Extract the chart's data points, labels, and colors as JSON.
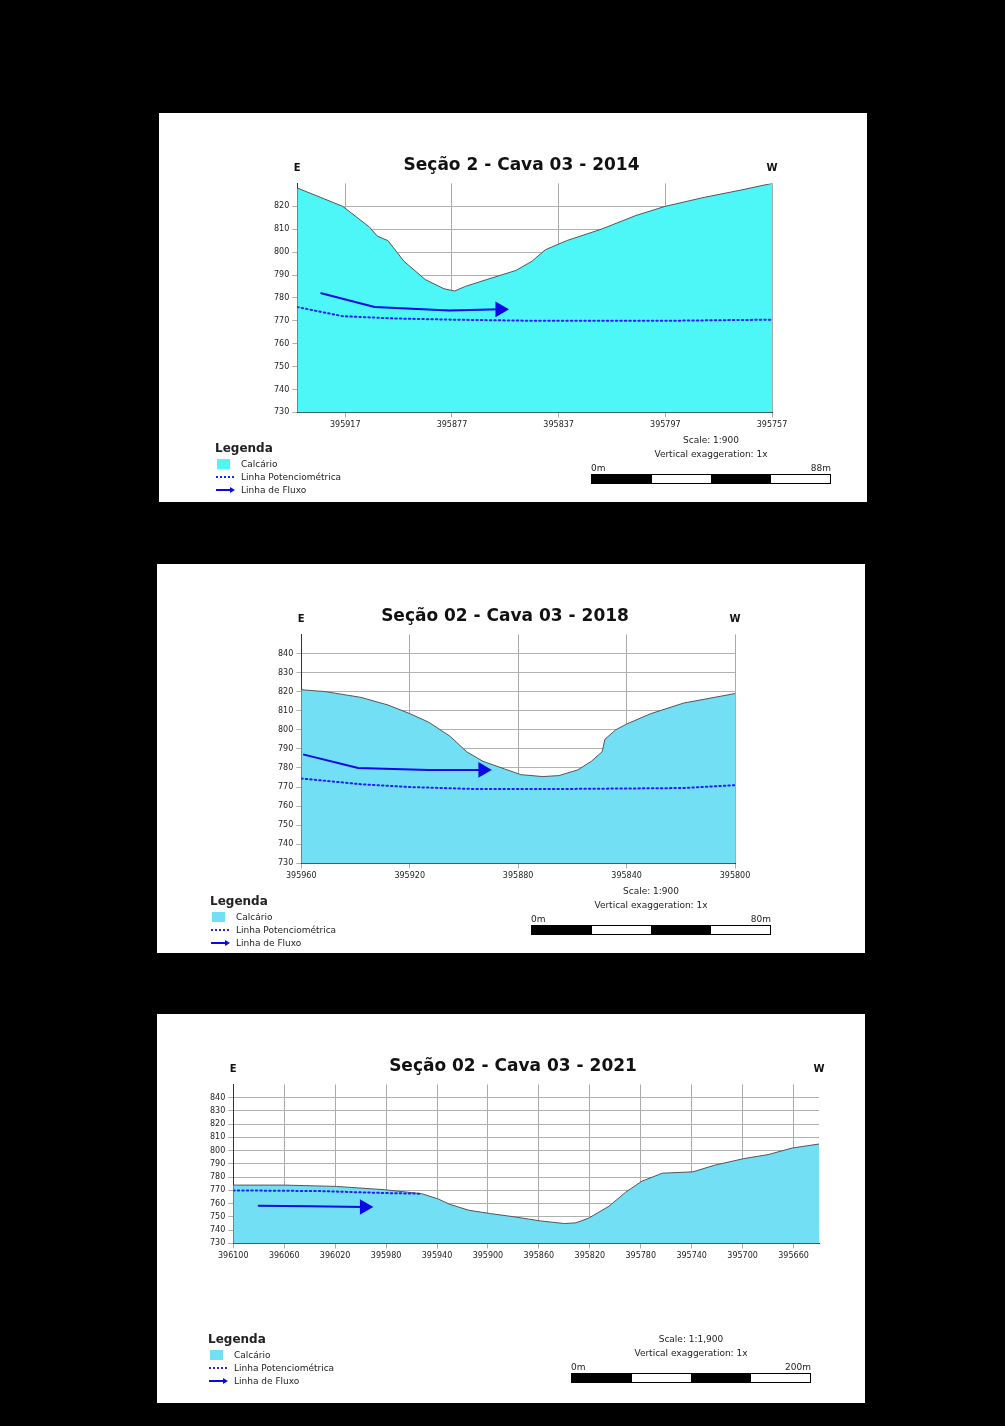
{
  "chart_data": [
    {
      "type": "area",
      "title": "Seção 2 - Cava 03 - 2014",
      "legend_title": "Legenda",
      "legend": "bottom left",
      "grid": true,
      "marker": "none",
      "xlim": [
        395935,
        395757
      ],
      "xticks": [
        395917,
        395877,
        395837,
        395797,
        395757
      ],
      "ylim": [
        730,
        830
      ],
      "yticks": [
        730,
        740,
        750,
        760,
        770,
        780,
        790,
        800,
        810,
        820
      ],
      "series": [
        {
          "name": "Calcário",
          "color": "#4df7f7",
          "x": [
            395935,
            395918,
            395908,
            395905,
            395901,
            395895,
            395887,
            395880,
            395876,
            395872,
            395864,
            395853,
            395847,
            395842,
            395834,
            395821,
            395808,
            395797,
            395782,
            395769,
            395757
          ],
          "values": [
            828,
            820,
            811,
            807,
            805,
            796,
            788,
            784,
            783,
            785,
            788,
            792,
            796,
            801,
            805,
            810,
            816,
            820,
            824,
            827,
            830
          ]
        },
        {
          "name": "Linha Potenciométrica",
          "type": "line",
          "line_style": "dotted",
          "color": "#2020ff",
          "x": [
            395935,
            395918,
            395898,
            395877,
            395846,
            395797,
            395757
          ],
          "values": [
            776,
            772,
            771,
            770.5,
            770,
            770,
            770.5
          ]
        },
        {
          "name": "Linha de Fluxo",
          "type": "line",
          "line_style": "solid",
          "color": "#0a0ae6",
          "x": [
            395926,
            395906,
            395878,
            395859
          ],
          "values": [
            782,
            776,
            774.5,
            775
          ]
        }
      ],
      "annotations": [
        "E",
        "W",
        "Scale: 1:900",
        "Vertical exaggeration: 1x",
        "0m",
        "88m"
      ]
    },
    {
      "type": "area",
      "title": "Seção 02 - Cava 03 - 2018",
      "legend_title": "Legenda",
      "legend": "bottom left",
      "grid": true,
      "marker": "none",
      "xlim": [
        395960,
        395800
      ],
      "xticks": [
        395960,
        395920,
        395880,
        395840,
        395800
      ],
      "ylim": [
        730,
        850
      ],
      "yticks": [
        730,
        740,
        750,
        760,
        770,
        780,
        790,
        800,
        810,
        820,
        830,
        840
      ],
      "series": [
        {
          "name": "Calcário",
          "color": "#72dff4",
          "x": [
            395960,
            395951,
            395938,
            395928,
            395920,
            395913,
            395905,
            395899,
            395893,
            395885,
            395879,
            395871,
            395865,
            395858,
            395853,
            395849,
            395848,
            395844,
            395840,
            395831,
            395819,
            395800
          ],
          "values": [
            821,
            820,
            817,
            813,
            808.5,
            804,
            796.5,
            788.5,
            783.5,
            779.5,
            776.5,
            775.5,
            776,
            779,
            783.5,
            788.5,
            795,
            800,
            803,
            808.5,
            814,
            819
          ]
        },
        {
          "name": "Linha Potenciométrica",
          "type": "line",
          "line_style": "dotted",
          "color": "#2020ff",
          "x": [
            395960,
            395938,
            395920,
            395896,
            395863,
            395819,
            395800
          ],
          "values": [
            774.5,
            771.5,
            770,
            769,
            769,
            769.5,
            771
          ]
        },
        {
          "name": "Linha de Fluxo",
          "type": "line",
          "line_style": "solid",
          "color": "#0a0ae6",
          "x": [
            395959,
            395939,
            395913,
            395893
          ],
          "values": [
            787,
            780,
            779,
            779
          ]
        }
      ],
      "annotations": [
        "E",
        "W",
        "Scale: 1:900",
        "Vertical exaggeration: 1x",
        "0m",
        "80m"
      ]
    },
    {
      "type": "area",
      "title": "Seção 02 - Cava 03 - 2021",
      "legend_title": "Legenda",
      "legend": "bottom left",
      "grid": true,
      "marker": "none",
      "xlim": [
        396100,
        395640
      ],
      "xticks": [
        396100,
        396060,
        396020,
        395980,
        395940,
        395900,
        395860,
        395820,
        395780,
        395740,
        395700,
        395660
      ],
      "ylim": [
        730,
        850
      ],
      "yticks": [
        730,
        740,
        750,
        760,
        770,
        780,
        790,
        800,
        810,
        820,
        830,
        840
      ],
      "series": [
        {
          "name": "Calcário",
          "color": "#72dff4",
          "x": [
            396100,
            396060,
            396019,
            395981,
            395952,
            395939,
            395930,
            395915,
            395898,
            395879,
            395859,
            395840,
            395831,
            395821,
            395805,
            395792,
            395779,
            395763,
            395739,
            395722,
            395699,
            395680,
            395661,
            395640
          ],
          "values": [
            774,
            774,
            773,
            770.5,
            767.5,
            763.5,
            759.5,
            755,
            752.5,
            750,
            747,
            745,
            745.5,
            749,
            758,
            768.5,
            777,
            783,
            784,
            789,
            794,
            797,
            802,
            805
          ]
        },
        {
          "name": "Linha Potenciométrica",
          "type": "line",
          "line_style": "dotted",
          "color": "#2020ff",
          "x": [
            396100,
            396032,
            395981,
            395952
          ],
          "values": [
            770,
            769.5,
            768,
            767.5
          ]
        },
        {
          "name": "Linha de Fluxo",
          "type": "line",
          "line_style": "solid",
          "color": "#0a0ae6",
          "x": [
            396080,
            396040,
            395997
          ],
          "values": [
            758.5,
            758,
            757.5
          ]
        }
      ],
      "annotations": [
        "E",
        "W",
        "Scale: 1:1,900",
        "Vertical exaggeration: 1x",
        "0m",
        "200m"
      ]
    }
  ]
}
